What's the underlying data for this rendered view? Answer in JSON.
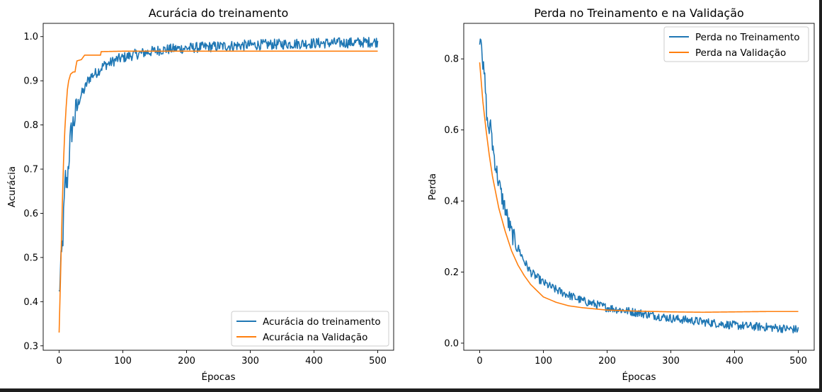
{
  "colors": {
    "train": "#1f77b4",
    "validation": "#ff7f0e",
    "axes": "#000000",
    "background": "#ffffff"
  },
  "chart_data": [
    {
      "type": "line",
      "title": "Acurácia do treinamento",
      "xlabel": "Épocas",
      "ylabel": "Acurácia",
      "xlim": [
        -25,
        525
      ],
      "ylim": [
        0.29,
        1.03
      ],
      "xticks": [
        0,
        100,
        200,
        300,
        400,
        500
      ],
      "yticks": [
        0.3,
        0.4,
        0.5,
        0.6,
        0.7,
        0.8,
        0.9,
        1.0
      ],
      "xtick_labels": [
        "0",
        "100",
        "200",
        "300",
        "400",
        "500"
      ],
      "ytick_labels": [
        "0.3",
        "0.4",
        "0.5",
        "0.6",
        "0.7",
        "0.8",
        "0.9",
        "1.0"
      ],
      "grid": false,
      "legend": {
        "placement": "lower-right",
        "entries": [
          "Acurácia do treinamento",
          "Acurácia na Validação"
        ]
      },
      "series": [
        {
          "name": "Acurácia do treinamento",
          "color": "#1f77b4",
          "points": [
            [
              0,
              0.415
            ],
            [
              2,
              0.46
            ],
            [
              4,
              0.5
            ],
            [
              6,
              0.55
            ],
            [
              8,
              0.62
            ],
            [
              10,
              0.68
            ],
            [
              12,
              0.66
            ],
            [
              14,
              0.7
            ],
            [
              16,
              0.74
            ],
            [
              18,
              0.77
            ],
            [
              20,
              0.79
            ],
            [
              25,
              0.82
            ],
            [
              30,
              0.85
            ],
            [
              35,
              0.87
            ],
            [
              40,
              0.88
            ],
            [
              45,
              0.9
            ],
            [
              50,
              0.91
            ],
            [
              60,
              0.92
            ],
            [
              70,
              0.935
            ],
            [
              80,
              0.94
            ],
            [
              90,
              0.948
            ],
            [
              100,
              0.952
            ],
            [
              120,
              0.96
            ],
            [
              140,
              0.965
            ],
            [
              160,
              0.97
            ],
            [
              180,
              0.972
            ],
            [
              200,
              0.974
            ],
            [
              250,
              0.978
            ],
            [
              300,
              0.981
            ],
            [
              350,
              0.983
            ],
            [
              400,
              0.985
            ],
            [
              450,
              0.986
            ],
            [
              500,
              0.988
            ]
          ]
        },
        {
          "name": "Acurácia na Validação",
          "color": "#ff7f0e",
          "points": [
            [
              0,
              0.33
            ],
            [
              3,
              0.5
            ],
            [
              5,
              0.62
            ],
            [
              7,
              0.72
            ],
            [
              9,
              0.79
            ],
            [
              11,
              0.84
            ],
            [
              13,
              0.88
            ],
            [
              15,
              0.9
            ],
            [
              18,
              0.915
            ],
            [
              22,
              0.92
            ],
            [
              25,
              0.92
            ],
            [
              26,
              0.93
            ],
            [
              28,
              0.945
            ],
            [
              35,
              0.948
            ],
            [
              40,
              0.958
            ],
            [
              65,
              0.958
            ],
            [
              66,
              0.966
            ],
            [
              100,
              0.967
            ],
            [
              500,
              0.967
            ]
          ]
        }
      ]
    },
    {
      "type": "line",
      "title": "Perda no Treinamento e na Validação",
      "xlabel": "Épocas",
      "ylabel": "Perda",
      "xlim": [
        -25,
        525
      ],
      "ylim": [
        -0.02,
        0.9
      ],
      "xticks": [
        0,
        100,
        200,
        300,
        400,
        500
      ],
      "yticks": [
        0.0,
        0.2,
        0.4,
        0.6,
        0.8
      ],
      "xtick_labels": [
        "0",
        "100",
        "200",
        "300",
        "400",
        "500"
      ],
      "ytick_labels": [
        "0.0",
        "0.2",
        "0.4",
        "0.6",
        "0.8"
      ],
      "grid": false,
      "legend": {
        "placement": "upper-right",
        "entries": [
          "Perda no Treinamento",
          "Perda na Validação"
        ]
      },
      "series": [
        {
          "name": "Perda no Treinamento",
          "color": "#1f77b4",
          "points": [
            [
              0,
              0.865
            ],
            [
              3,
              0.86
            ],
            [
              5,
              0.78
            ],
            [
              8,
              0.74
            ],
            [
              10,
              0.68
            ],
            [
              12,
              0.62
            ],
            [
              15,
              0.6
            ],
            [
              18,
              0.61
            ],
            [
              20,
              0.56
            ],
            [
              25,
              0.5
            ],
            [
              30,
              0.45
            ],
            [
              35,
              0.41
            ],
            [
              40,
              0.38
            ],
            [
              45,
              0.34
            ],
            [
              50,
              0.31
            ],
            [
              60,
              0.27
            ],
            [
              70,
              0.23
            ],
            [
              80,
              0.2
            ],
            [
              90,
              0.185
            ],
            [
              100,
              0.17
            ],
            [
              120,
              0.15
            ],
            [
              140,
              0.135
            ],
            [
              160,
              0.12
            ],
            [
              180,
              0.11
            ],
            [
              200,
              0.1
            ],
            [
              250,
              0.085
            ],
            [
              300,
              0.07
            ],
            [
              350,
              0.06
            ],
            [
              400,
              0.05
            ],
            [
              450,
              0.045
            ],
            [
              500,
              0.038
            ]
          ]
        },
        {
          "name": "Perda na Validação",
          "color": "#ff7f0e",
          "points": [
            [
              0,
              0.79
            ],
            [
              5,
              0.68
            ],
            [
              10,
              0.6
            ],
            [
              15,
              0.53
            ],
            [
              20,
              0.47
            ],
            [
              30,
              0.38
            ],
            [
              40,
              0.315
            ],
            [
              50,
              0.26
            ],
            [
              60,
              0.22
            ],
            [
              70,
              0.19
            ],
            [
              80,
              0.165
            ],
            [
              100,
              0.13
            ],
            [
              120,
              0.115
            ],
            [
              140,
              0.105
            ],
            [
              160,
              0.1
            ],
            [
              200,
              0.093
            ],
            [
              250,
              0.09
            ],
            [
              300,
              0.088
            ],
            [
              350,
              0.087
            ],
            [
              400,
              0.088
            ],
            [
              450,
              0.089
            ],
            [
              500,
              0.089
            ]
          ]
        }
      ]
    }
  ]
}
